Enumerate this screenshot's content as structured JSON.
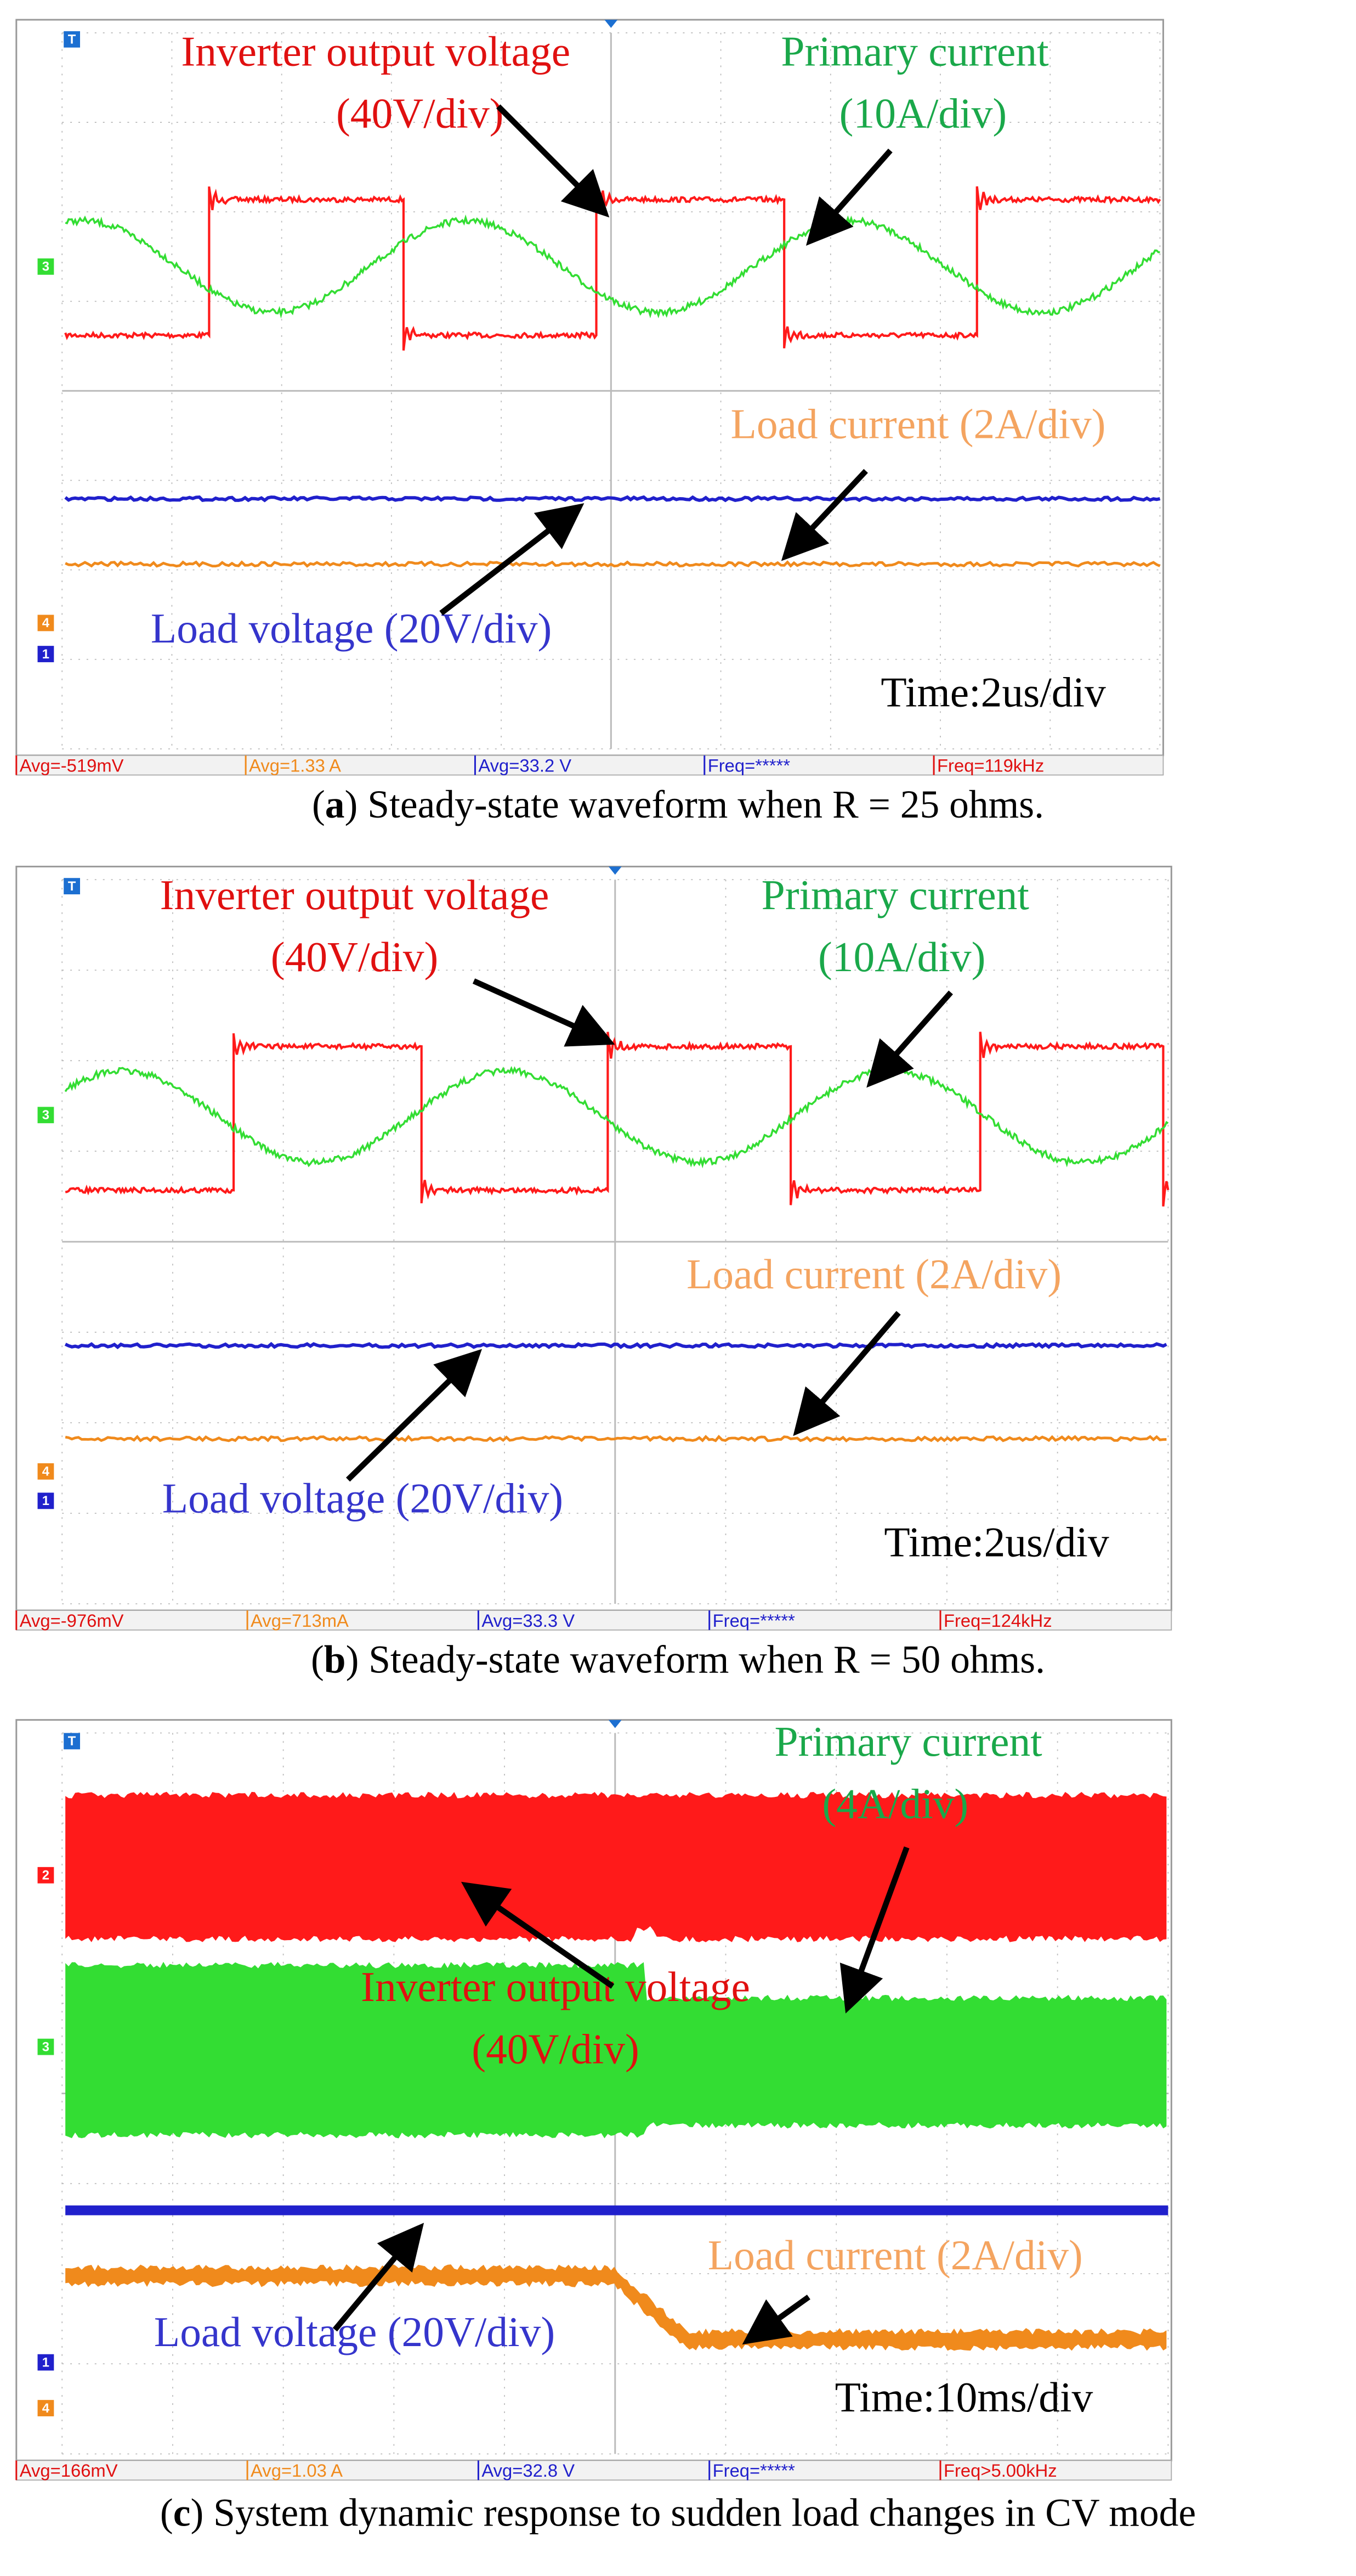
{
  "panels": [
    {
      "labels": [
        "Inverter output voltage",
        "(40V/div)",
        "Primary current",
        "(10A/div)",
        "Load current (2A/div)",
        "Load voltage (20V/div)",
        "Time:2us/div"
      ],
      "markers": [
        "T",
        "3",
        "4",
        "1"
      ],
      "status": [
        "Avg=-519mV",
        "Avg=1.33 A",
        "Avg=33.2 V",
        "Freq=*****",
        "Freq=119kHz"
      ],
      "caption": {
        "open": "(",
        "letter": "a",
        "text": ") Steady-state waveform when R = 25 ohms."
      }
    },
    {
      "labels": [
        "Inverter output voltage",
        "(40V/div)",
        "Primary current",
        "(10A/div)",
        "Load current (2A/div)",
        "Load voltage (20V/div)",
        "Time:2us/div"
      ],
      "markers": [
        "T",
        "3",
        "4",
        "1"
      ],
      "status": [
        "Avg=-976mV",
        "Avg=713mA",
        "Avg=33.3 V",
        "Freq=*****",
        "Freq=124kHz"
      ],
      "caption": {
        "open": "(",
        "letter": "b",
        "text": ") Steady-state waveform when R = 50 ohms."
      }
    },
    {
      "labels": [
        "Primary current",
        "(4A/div)",
        "Inverter output voltage",
        "(40V/div)",
        "Load current (2A/div)",
        "Load voltage (20V/div)",
        "Time:10ms/div"
      ],
      "markers": [
        "T",
        "2",
        "3",
        "1",
        "4"
      ],
      "status": [
        "Avg=166mV",
        "Avg=1.03 A",
        "Avg=32.8 V",
        "Freq=*****",
        "Freq>5.00kHz"
      ],
      "caption": {
        "open": "(",
        "letter": "c",
        "text": ") System dynamic response to sudden load changes in CV mode"
      }
    }
  ]
}
